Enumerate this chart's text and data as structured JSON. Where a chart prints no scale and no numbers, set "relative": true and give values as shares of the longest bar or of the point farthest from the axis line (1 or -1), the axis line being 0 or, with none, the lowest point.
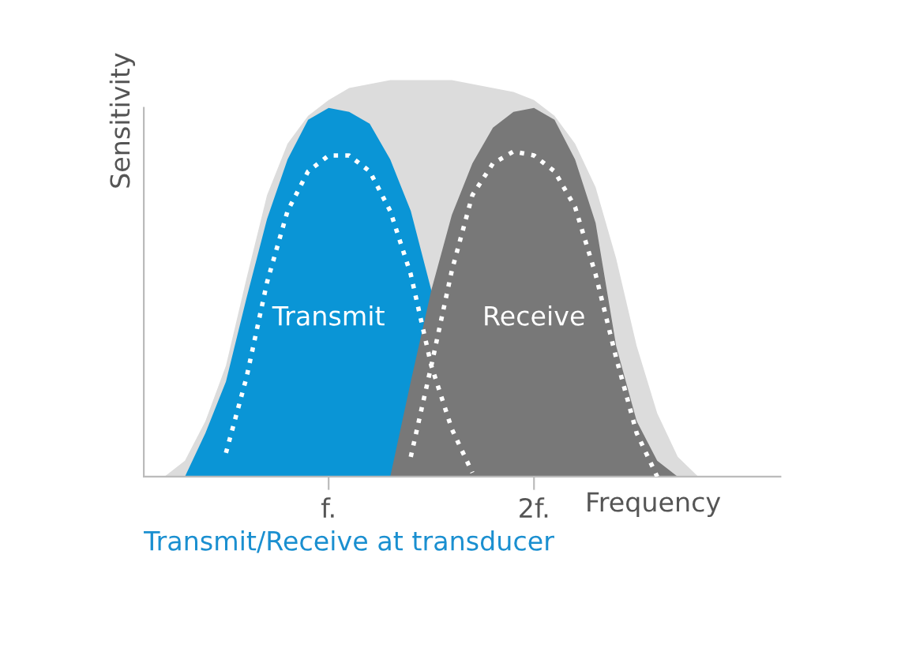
{
  "chart_data": {
    "type": "area",
    "relative": true,
    "ylabel": "Sensitivity",
    "xlabel": "Frequency",
    "categories": [
      null,
      null,
      null,
      null,
      null,
      null,
      null,
      null,
      null,
      "f.",
      null,
      null,
      null,
      null,
      null,
      null,
      null,
      null,
      null,
      "2f.",
      null,
      null,
      null,
      null,
      null,
      null,
      null,
      null,
      null,
      null,
      null,
      null
    ],
    "legend": false,
    "grid": false,
    "annotations": [
      "Transmit/Receive at transducer"
    ],
    "series": [
      {
        "color": "#dcdcdc",
        "values": [
          null,
          0,
          0.04,
          0.14,
          0.28,
          0.5,
          0.71,
          0.84,
          0.91,
          0.95,
          0.98,
          0.99,
          1.0,
          1.0,
          1.0,
          1.0,
          0.99,
          0.98,
          0.97,
          0.95,
          0.91,
          0.84,
          0.73,
          0.55,
          0.33,
          0.16,
          0.05,
          0,
          null,
          null,
          null,
          null
        ]
      },
      {
        "name": "Transmit",
        "color": "#0a95d6",
        "values": [
          null,
          null,
          0,
          0.11,
          0.24,
          0.45,
          0.65,
          0.8,
          0.9,
          0.93,
          0.92,
          0.89,
          0.8,
          0.67,
          0.47,
          null,
          null,
          null,
          null,
          null,
          null,
          null,
          null,
          null,
          null,
          null,
          null,
          null,
          null,
          null,
          null,
          null
        ]
      },
      {
        "name": "Receive",
        "color": "#787878",
        "values": [
          null,
          null,
          null,
          null,
          null,
          null,
          null,
          null,
          null,
          null,
          null,
          null,
          0,
          0.24,
          0.47,
          0.66,
          0.79,
          0.88,
          0.92,
          0.93,
          0.9,
          0.8,
          0.64,
          0.33,
          0.14,
          0.04,
          0,
          null,
          null,
          null,
          null,
          null
        ]
      },
      {
        "type": "line",
        "line_style": "dotted",
        "color": "#ffffff",
        "values": [
          null,
          null,
          null,
          null,
          0.06,
          0.25,
          0.49,
          0.67,
          0.77,
          0.81,
          0.81,
          0.77,
          0.67,
          0.51,
          0.28,
          0.12,
          0.01,
          null,
          null,
          null,
          null,
          null,
          null,
          null,
          null,
          null,
          null,
          null,
          null,
          null,
          null,
          null
        ]
      },
      {
        "type": "line",
        "line_style": "dotted",
        "color": "#ffffff",
        "values": [
          null,
          null,
          null,
          null,
          null,
          null,
          null,
          null,
          null,
          null,
          null,
          null,
          null,
          0.05,
          0.28,
          0.52,
          0.71,
          0.79,
          0.82,
          0.81,
          0.77,
          0.68,
          0.51,
          0.3,
          0.11,
          0.0,
          null,
          null,
          null,
          null,
          null,
          null
        ]
      }
    ]
  }
}
